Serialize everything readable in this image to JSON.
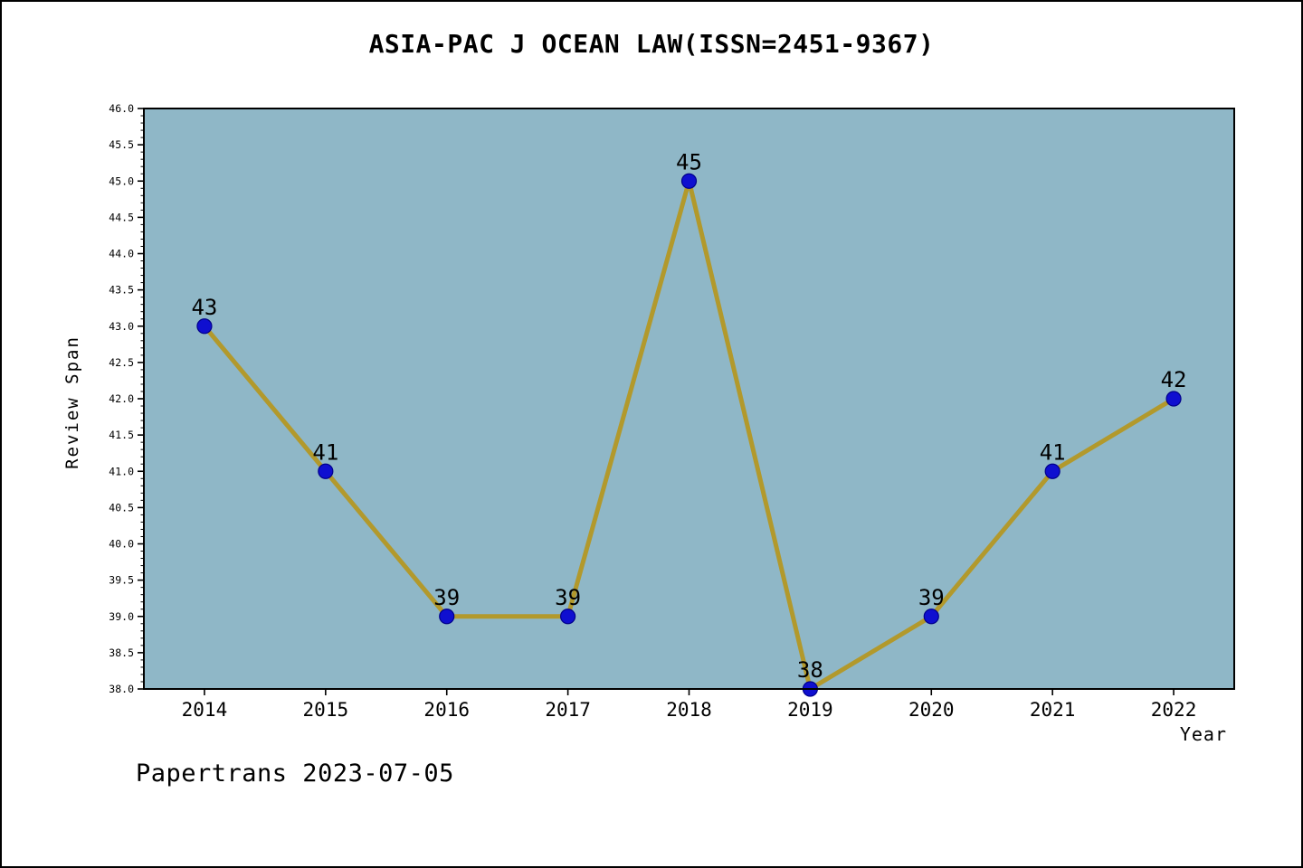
{
  "chart_data": {
    "type": "line",
    "title": "ASIA-PAC J OCEAN LAW(ISSN=2451-9367)",
    "xlabel": "Year",
    "ylabel": "Review Span",
    "footer": "Papertrans 2023-07-05",
    "x": [
      2014,
      2015,
      2016,
      2017,
      2018,
      2019,
      2020,
      2021,
      2022
    ],
    "values": [
      43,
      41,
      39,
      39,
      45,
      38,
      39,
      41,
      42
    ],
    "ylim": [
      38.0,
      46.0
    ],
    "y_major_step": 0.5,
    "y_minor_step": 0.1,
    "xlim": [
      2013.5,
      2022.5
    ],
    "grid": "off",
    "legend": "none",
    "colors": {
      "line": "#b2992c",
      "marker_fill": "#0f0fd0",
      "marker_edge": "#00008b",
      "plot_bg": "#8fb7c7",
      "page_bg": "#ffffff",
      "axis": "#000000",
      "text": "#000000"
    }
  }
}
